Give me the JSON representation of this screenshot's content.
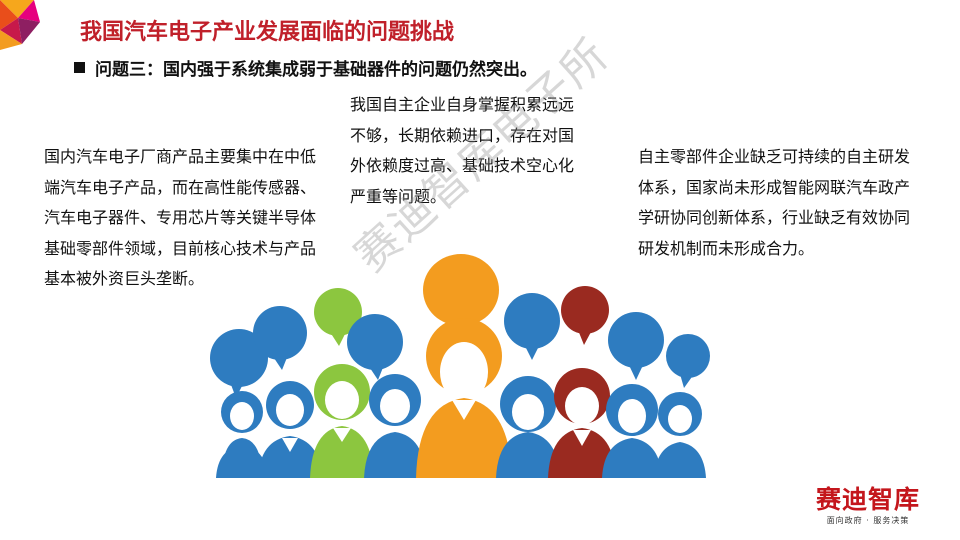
{
  "slide": {
    "title": "我国汽车电子产业发展面临的问题挑战",
    "subtitle": "问题三：国内强于系统集成弱于基础器件的问题仍然突出。",
    "paragraphs": {
      "left": "国内汽车电子厂商产品主要集中在中低端汽车电子产品，而在高性能传感器、汽车电子器件、专用芯片等关键半导体基础零部件领域，目前核心技术与产品基本被外资巨头垄断。",
      "middle": "我国自主企业自身掌握积累远远不够，长期依赖进口，存在对国外依赖度过高、基础技术空心化严重等问题。",
      "right": "自主零部件企业缺乏可持续的自主研发体系，国家尚未形成智能网联汽车政产学研协同创新体系，行业缺乏有效协同研发机制而未形成合力。"
    },
    "watermark": "赛迪智库电子所",
    "logo": {
      "main": "赛迪智库",
      "sub": "面向政府 · 服务决策"
    },
    "colors": {
      "title": "#c0202a",
      "blue": "#2e7cc0",
      "green": "#8cc63f",
      "orange": "#f39c1f",
      "darkred": "#9a2a20",
      "logo": "#c4161c"
    }
  }
}
